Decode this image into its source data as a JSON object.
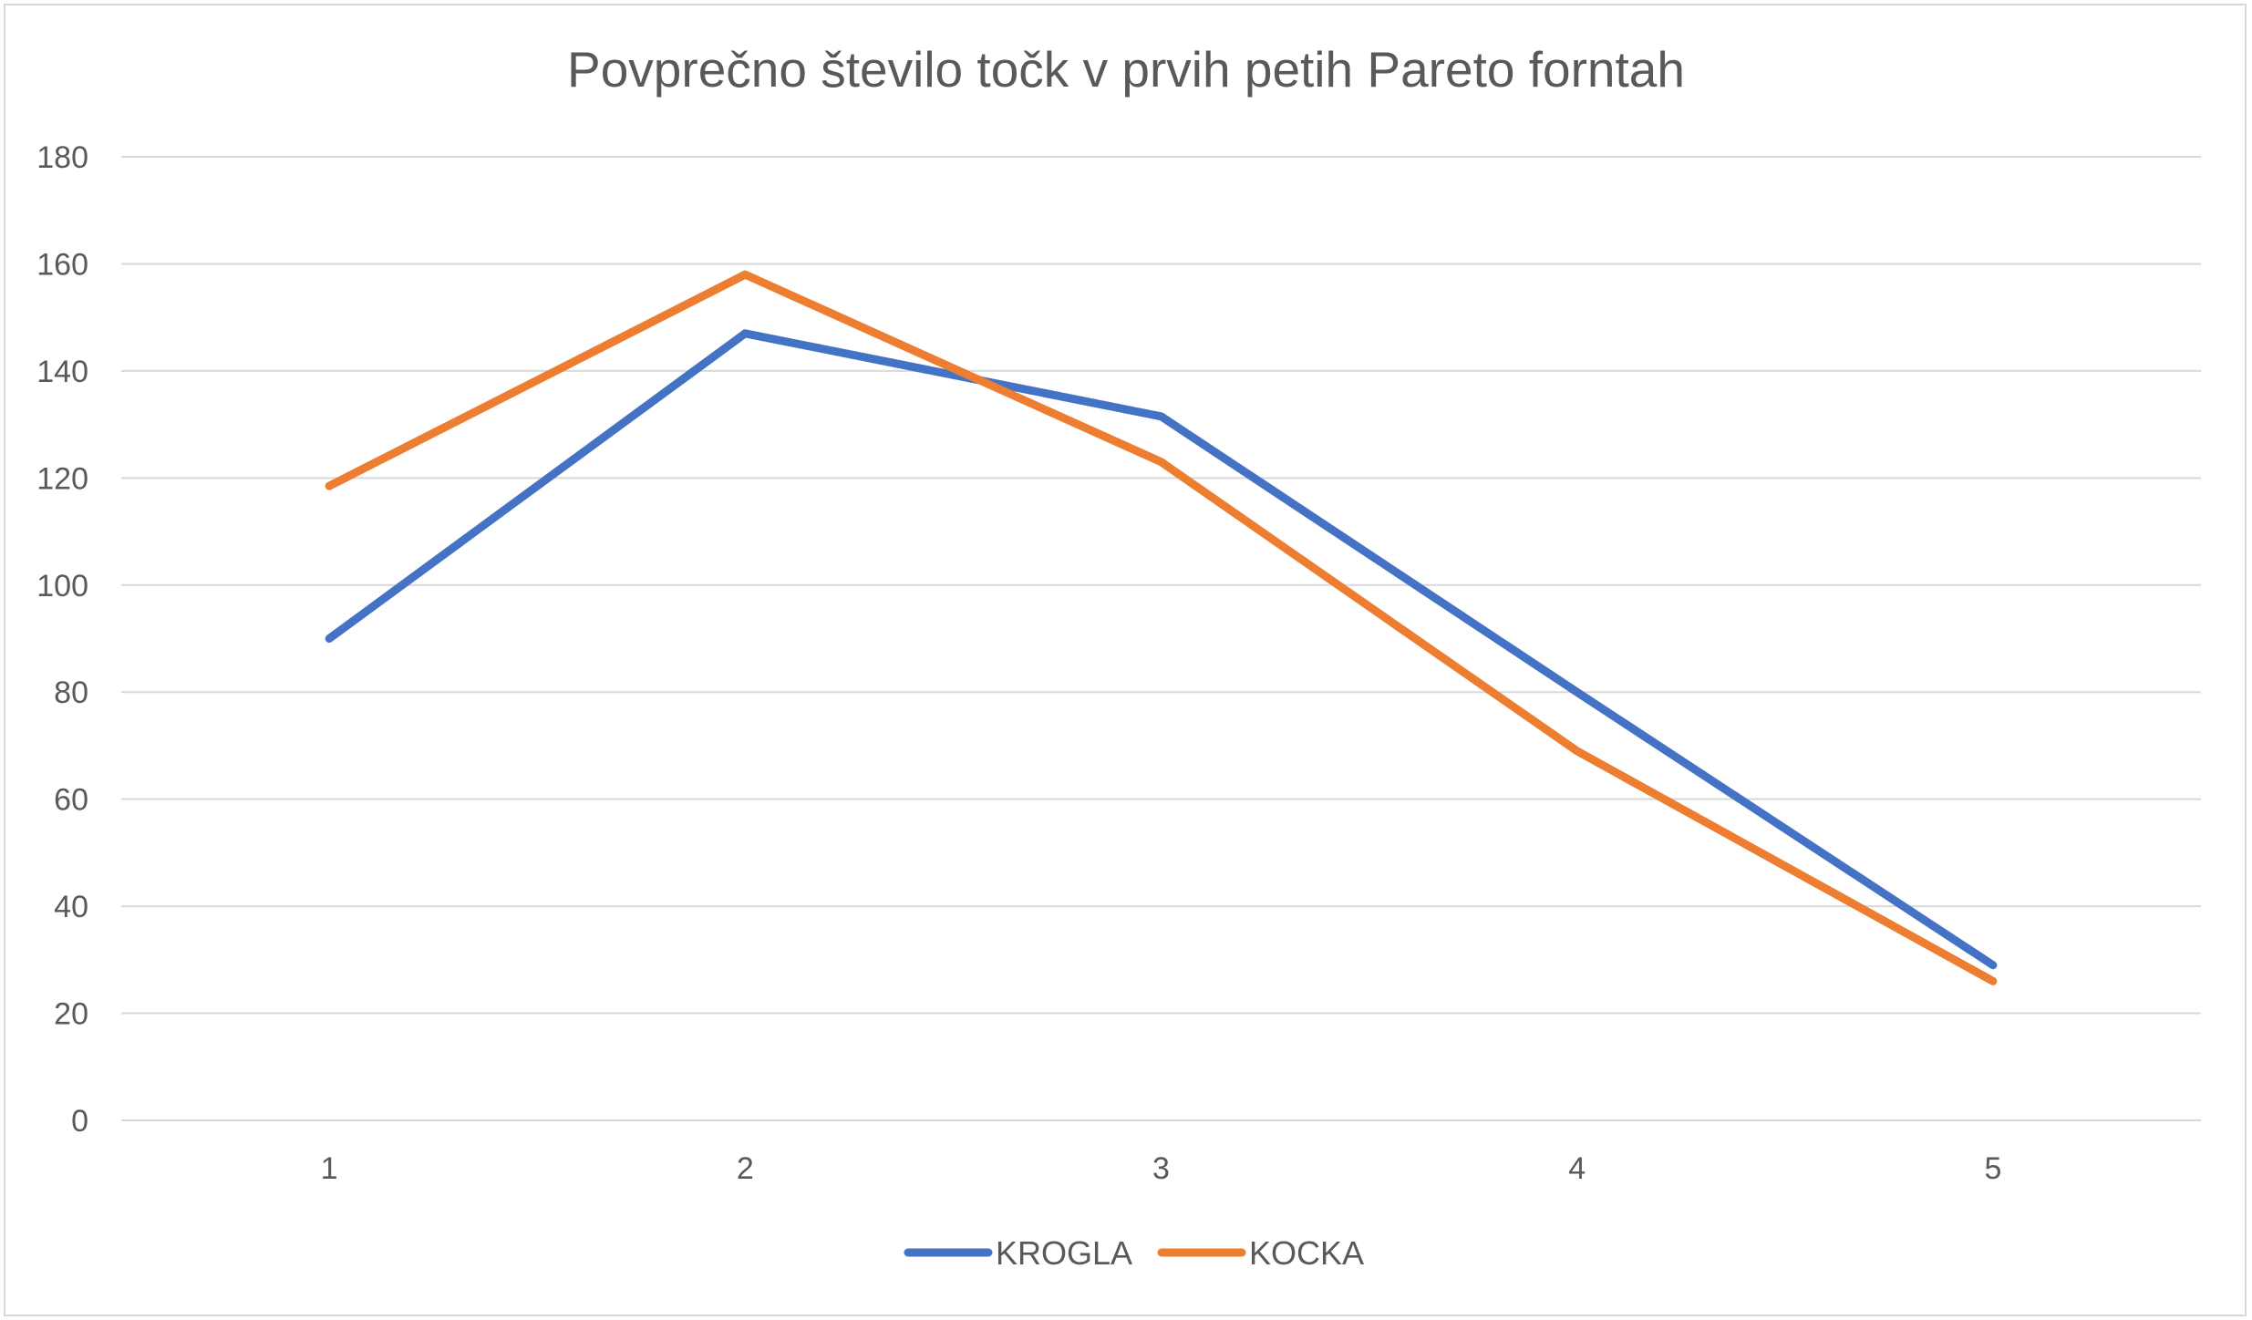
{
  "chart_data": {
    "type": "line",
    "title": "Povprečno število točk v prvih petih Pareto forntah",
    "xlabel": "",
    "ylabel": "",
    "categories": [
      "1",
      "2",
      "3",
      "4",
      "5"
    ],
    "ylim": [
      0,
      180
    ],
    "yticks": [
      "0",
      "20",
      "40",
      "60",
      "80",
      "100",
      "120",
      "140",
      "160",
      "180"
    ],
    "grid": true,
    "legend_position": "bottom",
    "series": [
      {
        "name": "KROGLA",
        "color": "#4472C4",
        "values": [
          90,
          147,
          131.5,
          80,
          29
        ]
      },
      {
        "name": "KOCKA",
        "color": "#ED7D31",
        "values": [
          118.5,
          158,
          123,
          69,
          26
        ]
      }
    ]
  }
}
